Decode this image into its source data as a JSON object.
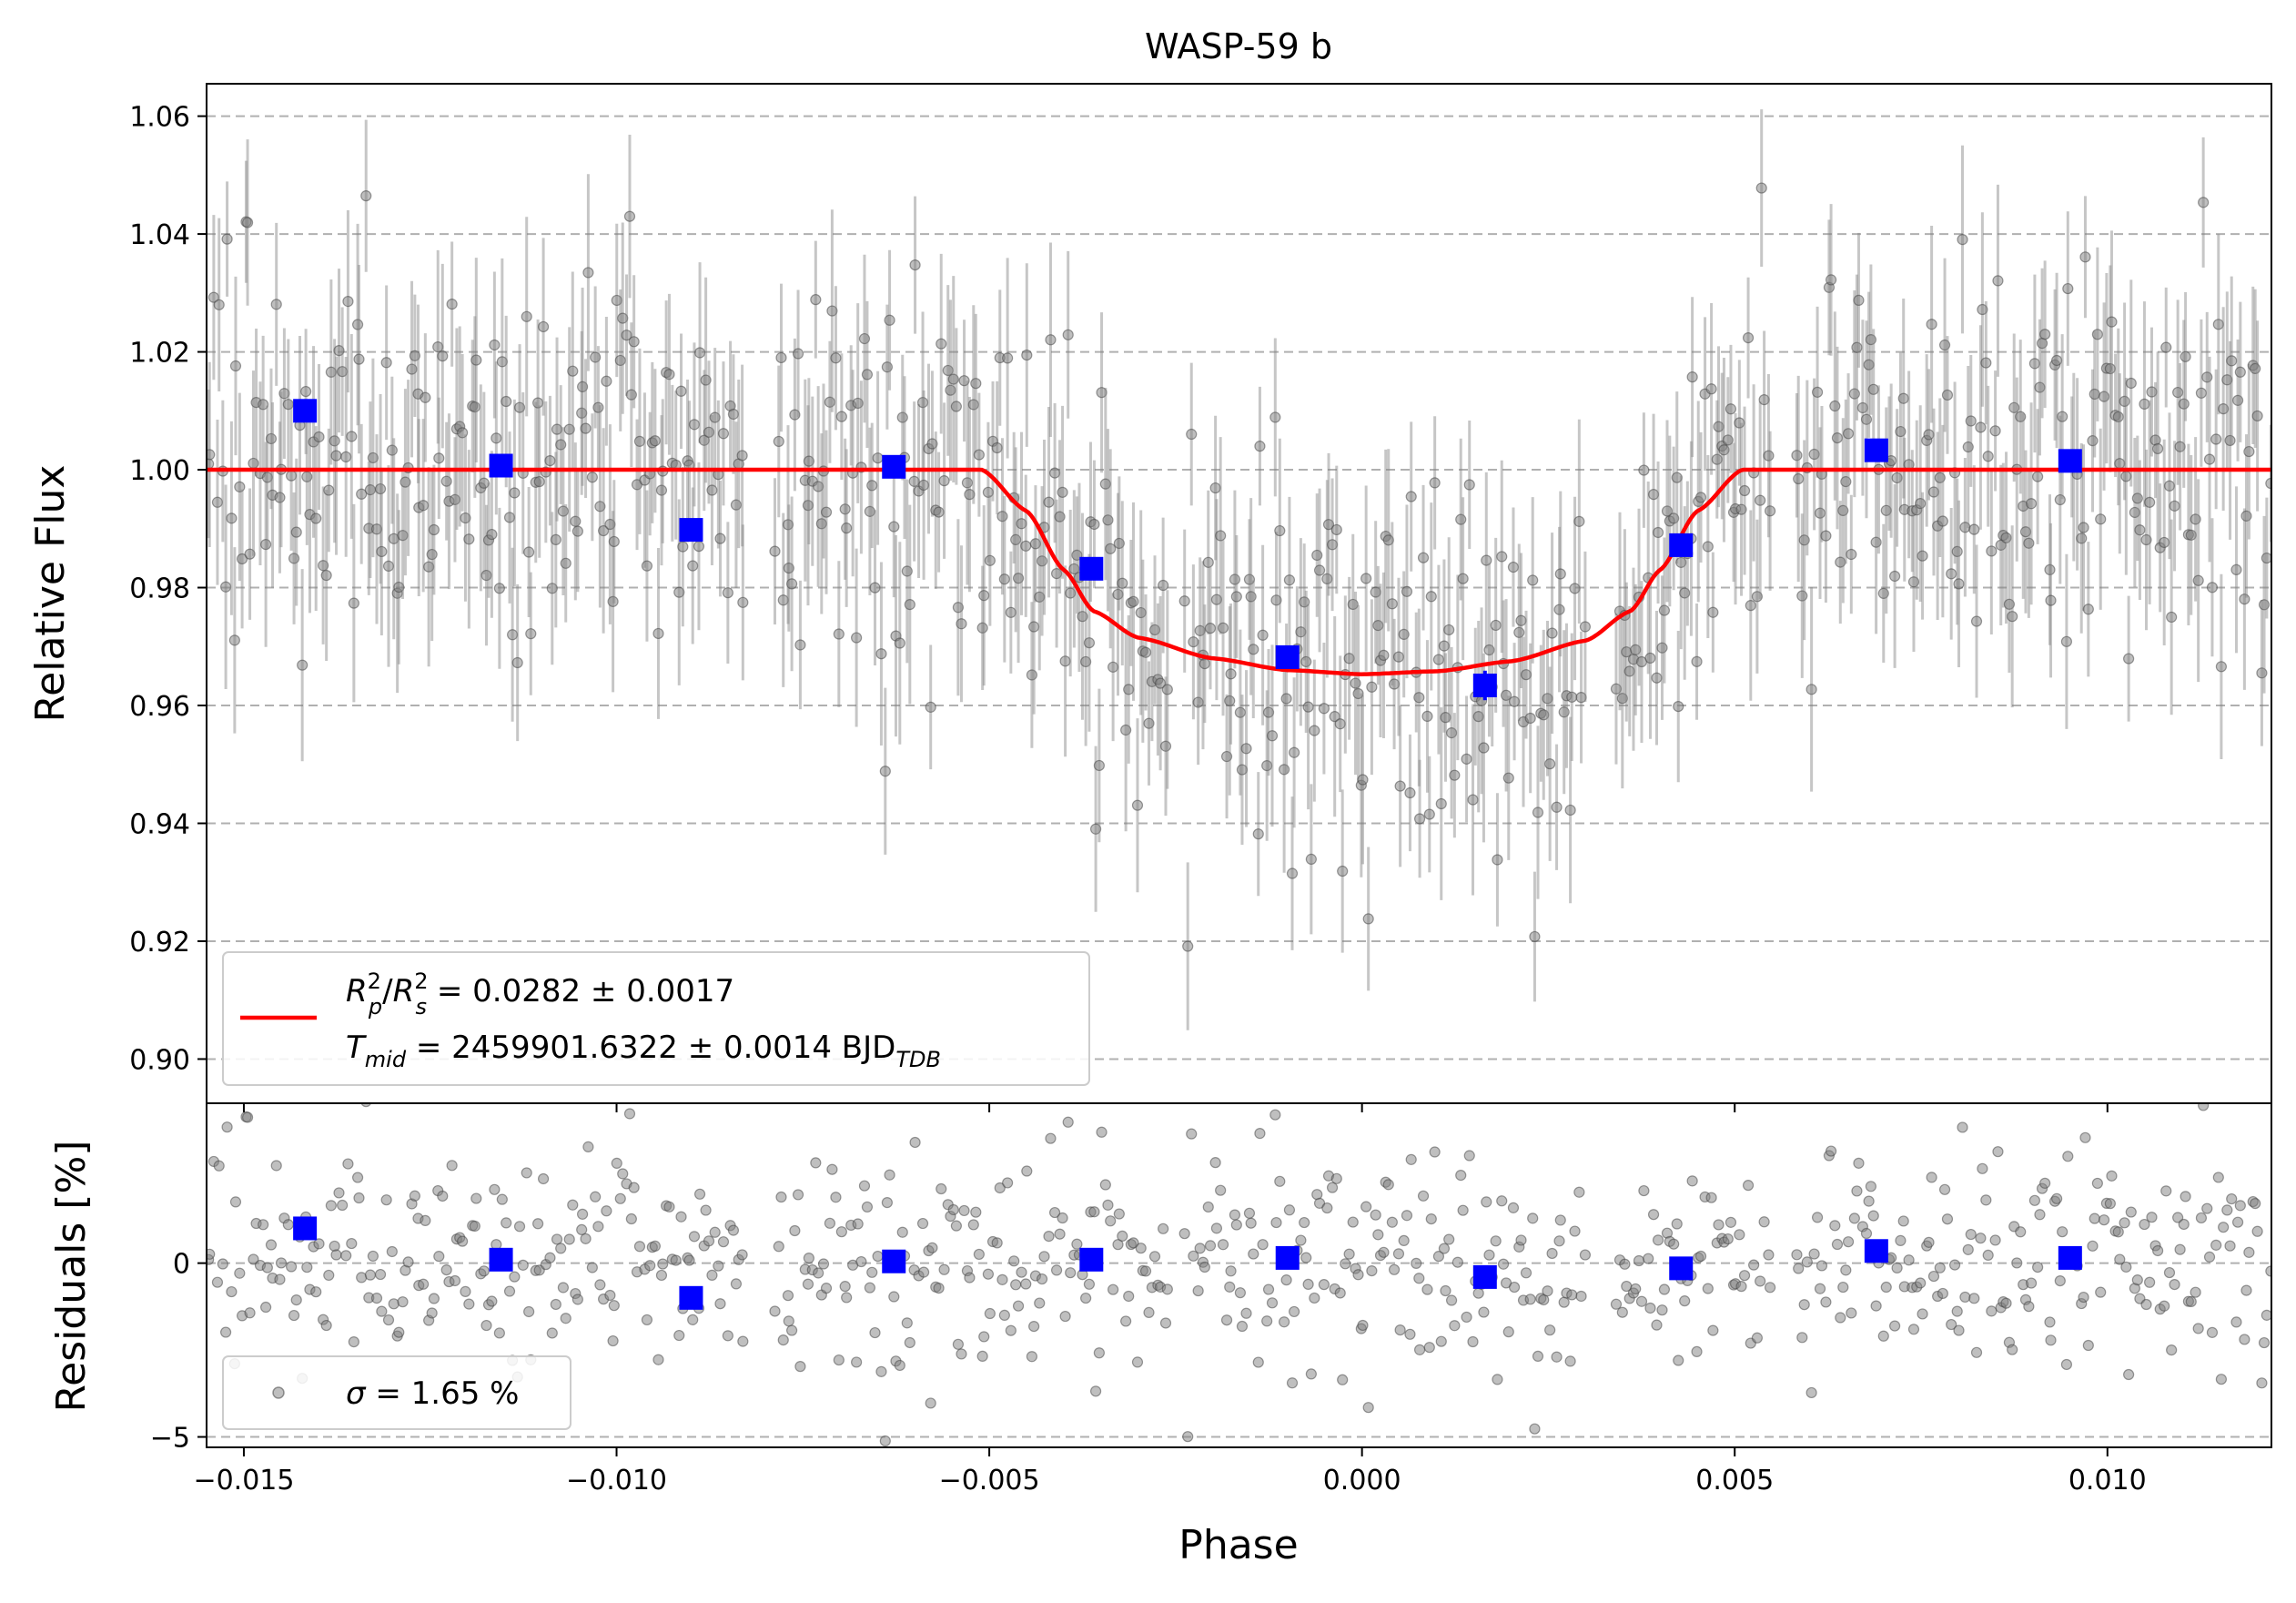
{
  "chart_data": [
    {
      "type": "scatter",
      "panel": "main",
      "title": "WASP-59 b",
      "xlabel": "",
      "ylabel": "Relative Flux",
      "xlim": [
        -0.0155,
        0.0122
      ],
      "ylim": [
        0.8925,
        1.0655
      ],
      "yticks": [
        0.9,
        0.92,
        0.94,
        0.96,
        0.98,
        1.0,
        1.02,
        1.04,
        1.06
      ],
      "ytick_labels": [
        "0.90",
        "0.92",
        "0.94",
        "0.96",
        "0.98",
        "1.00",
        "1.02",
        "1.04",
        "1.06"
      ],
      "grid": "horizontal dashed",
      "model": {
        "name": "transit model",
        "color": "#ff0000",
        "x": [
          -0.0155,
          -0.0051,
          -0.0045,
          -0.004,
          -0.0036,
          -0.003,
          -0.002,
          -0.001,
          0.0,
          0.001,
          0.002,
          0.003,
          0.0036,
          0.004,
          0.0045,
          0.0051,
          0.0122
        ],
        "y": [
          1.0,
          1.0,
          0.993,
          0.983,
          0.976,
          0.9715,
          0.968,
          0.966,
          0.9653,
          0.9658,
          0.9675,
          0.971,
          0.976,
          0.983,
          0.993,
          1.0,
          1.0
        ]
      },
      "binned_points": {
        "name": "binned data",
        "color": "#0000ff",
        "x": [
          -0.01418,
          -0.01155,
          -0.009,
          -0.00628,
          -0.00363,
          -0.001,
          0.00165,
          0.00428,
          0.0069,
          0.0095
        ],
        "y": [
          1.01,
          1.0007,
          0.9898,
          1.0005,
          0.9832,
          0.9682,
          0.9634,
          0.9872,
          1.0033,
          1.0015
        ],
        "yerr": [
          0.0015,
          0.0015,
          0.0015,
          0.0015,
          0.0015,
          0.0015,
          0.0025,
          0.0015,
          0.0015,
          0.0015
        ]
      },
      "raw_points": {
        "name": "unbinned observations",
        "color": "#808080",
        "count": 720,
        "typical_yerr": 0.013,
        "scatter_sigma_percent": 1.65
      },
      "legend": {
        "location": "lower-left",
        "line1_text": "R²ₚ/R²ₛ = 0.0282 ± 0.0017",
        "line2_text": "Tmid = 2459901.6322 ± 0.0014 BJD_TDB",
        "line1": {
          "r": "R",
          "p_sub": "p",
          "s_sub": "s",
          "sup": "2",
          "slash": "/",
          "value": " = 0.0282 ± 0.0017"
        },
        "line2": {
          "t": "T",
          "mid_sub": "mid",
          "value": " = 2459901.6322 ± 0.0014 BJD",
          "tdb_sub": "TDB"
        }
      }
    },
    {
      "type": "scatter",
      "panel": "residuals",
      "title": "",
      "xlabel": "Phase",
      "ylabel": "Residuals [%]",
      "xlim": [
        -0.0155,
        0.0122
      ],
      "ylim": [
        -5.3,
        4.6
      ],
      "xticks": [
        -0.015,
        -0.01,
        -0.005,
        0.0,
        0.005,
        0.01
      ],
      "xtick_labels": [
        "−0.015",
        "−0.010",
        "−0.005",
        "0.000",
        "0.005",
        "0.010"
      ],
      "yticks": [
        -5,
        0
      ],
      "ytick_labels": [
        "−5",
        "0"
      ],
      "grid": "horizontal dashed",
      "binned_points": {
        "name": "binned residuals",
        "color": "#0000ff",
        "x": [
          -0.01418,
          -0.01155,
          -0.009,
          -0.00628,
          -0.00363,
          -0.001,
          0.00165,
          0.00428,
          0.0069,
          0.0095
        ],
        "y": [
          1.0,
          0.1,
          -1.0,
          0.05,
          0.1,
          0.15,
          -0.4,
          -0.15,
          0.35,
          0.15
        ]
      },
      "raw_points": {
        "color": "#808080",
        "sigma_percent": 1.65
      },
      "legend": {
        "location": "lower-left",
        "sigma_symbol": "σ",
        "text": " = 1.65 %"
      }
    }
  ]
}
